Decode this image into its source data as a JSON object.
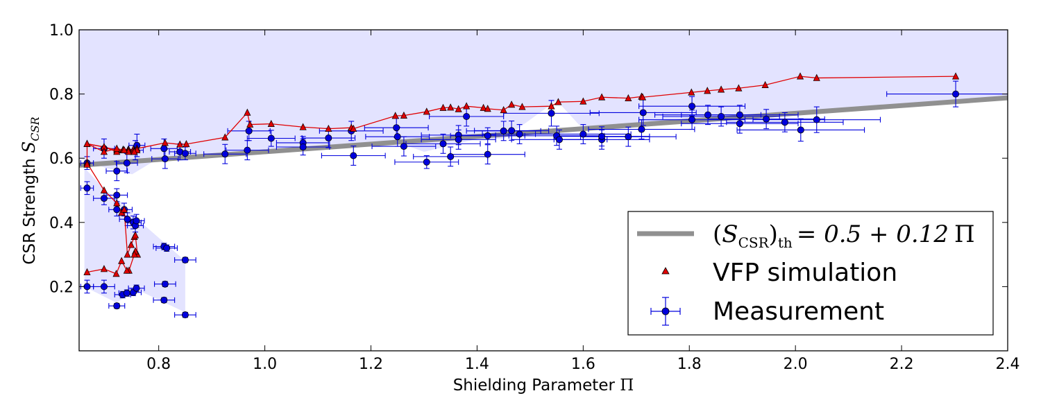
{
  "chart_data": {
    "type": "scatter",
    "xlabel": "Shielding Parameter Π",
    "xlabel_text": "Shielding Parameter",
    "xlabel_symbol": "Π",
    "ylabel": "CSR Strength S_CSR",
    "ylabel_text": "CSR Strength",
    "ylabel_symbol": "S",
    "ylabel_subscript": "CSR",
    "xlim": [
      0.65,
      2.4
    ],
    "ylim": [
      0.0,
      1.0
    ],
    "xticks": [
      0.8,
      1.0,
      1.2,
      1.4,
      1.6,
      1.8,
      2.0,
      2.2,
      2.4
    ],
    "xtick_labels": [
      "0.8",
      "1.0",
      "1.2",
      "1.4",
      "1.6",
      "1.8",
      "2.0",
      "2.2",
      "2.4"
    ],
    "yticks": [
      0.2,
      0.4,
      0.6,
      0.8,
      1.0
    ],
    "ytick_labels": [
      "0.2",
      "0.4",
      "0.6",
      "0.8",
      "1.0"
    ],
    "legend": {
      "position": "lower-right",
      "entries": [
        {
          "label": "(S_CSR)_th = 0.5 + 0.12 Π",
          "parts": {
            "open": "(",
            "S": "S",
            "sub": "CSR",
            "close": ")",
            "th": "th",
            "eq": "= 0.5 + 0.12",
            "pi": "Π"
          },
          "marker": "line",
          "color": "#909090"
        },
        {
          "label": "VFP simulation",
          "marker": "triangle",
          "color": "#e00000"
        },
        {
          "label": "Measurement",
          "marker": "circle-errorbar",
          "color": "#0000dd"
        }
      ]
    },
    "colors": {
      "region": "#e3e3ff",
      "threshold": "#909090",
      "simulation": "#e00000",
      "measurement": "#0000dd"
    },
    "threshold": {
      "name": "(S_CSR)_th",
      "intercept": 0.5,
      "slope": 0.12
    },
    "region_band": {
      "x": [
        0.65,
        0.7,
        0.75,
        0.8,
        0.84,
        0.85,
        0.97,
        1.07,
        1.16,
        1.25,
        1.3,
        1.4,
        1.45,
        1.55,
        1.6,
        1.7,
        1.8,
        2.0,
        2.3,
        2.4
      ],
      "upper": [
        1.0,
        1.0,
        1.0,
        1.0,
        1.0,
        1.0,
        1.0,
        1.0,
        1.0,
        1.0,
        1.0,
        1.0,
        1.0,
        1.0,
        1.0,
        1.0,
        1.0,
        1.0,
        1.0,
        1.0
      ],
      "lower_top": [
        0.6,
        0.57,
        0.55,
        0.6,
        0.6,
        0.6,
        0.62,
        0.63,
        0.64,
        0.65,
        0.62,
        0.66,
        0.66,
        0.78,
        0.69,
        0.7,
        0.72,
        0.74,
        0.78,
        0.79
      ]
    },
    "region_wedge": {
      "x": [
        0.66,
        0.7,
        0.74,
        0.76,
        0.85,
        0.85,
        0.76,
        0.72,
        0.66
      ],
      "y": [
        0.57,
        0.5,
        0.45,
        0.41,
        0.28,
        0.12,
        0.19,
        0.15,
        0.2
      ]
    },
    "series": [
      {
        "name": "VFP simulation",
        "marker": "triangle",
        "x": [
          0.665,
          0.665,
          0.697,
          0.721,
          0.733,
          0.743,
          0.752,
          0.759,
          0.759,
          0.754,
          0.743,
          0.735,
          0.721,
          0.697,
          0.665
        ],
        "y": [
          0.58,
          0.645,
          0.635,
          0.62,
          0.625,
          0.625,
          0.62,
          0.63,
          0.625,
          0.62,
          0.62,
          0.625,
          0.63,
          0.62,
          0.645
        ],
        "upper_x": [
          0.665,
          0.697,
          0.721,
          0.733,
          0.743,
          0.752,
          0.759,
          0.812,
          0.84,
          0.852,
          0.925,
          0.967,
          0.972,
          1.012,
          1.072,
          1.12,
          1.163,
          1.167,
          1.246,
          1.262,
          1.305,
          1.336,
          1.35,
          1.365,
          1.38,
          1.412,
          1.42,
          1.45,
          1.465,
          1.485,
          1.54,
          1.553,
          1.6,
          1.635,
          1.685,
          1.71,
          1.712,
          1.804,
          1.834,
          1.86,
          1.893,
          1.943,
          2.009,
          2.04,
          2.302
        ],
        "upper_y": [
          0.645,
          0.635,
          0.625,
          0.627,
          0.628,
          0.627,
          0.63,
          0.648,
          0.643,
          0.644,
          0.665,
          0.742,
          0.705,
          0.707,
          0.697,
          0.692,
          0.695,
          0.692,
          0.732,
          0.733,
          0.745,
          0.757,
          0.758,
          0.753,
          0.762,
          0.757,
          0.754,
          0.75,
          0.767,
          0.76,
          0.762,
          0.775,
          0.777,
          0.79,
          0.787,
          0.792,
          0.79,
          0.805,
          0.81,
          0.814,
          0.818,
          0.828,
          0.855,
          0.85,
          0.855
        ],
        "lower_x": [
          0.665,
          0.697,
          0.721,
          0.73,
          0.735,
          0.741,
          0.748,
          0.754,
          0.756,
          0.76,
          0.756,
          0.754,
          0.744,
          0.74,
          0.73,
          0.72,
          0.697,
          0.665
        ],
        "lower_y": [
          0.585,
          0.5,
          0.46,
          0.43,
          0.44,
          0.3,
          0.33,
          0.355,
          0.36,
          0.3,
          0.31,
          0.3,
          0.25,
          0.25,
          0.28,
          0.24,
          0.255,
          0.245
        ]
      },
      {
        "name": "Measurement",
        "marker": "circle",
        "x": [
          0.665,
          0.697,
          0.721,
          0.74,
          0.756,
          0.759,
          0.81,
          0.812,
          0.84,
          0.85,
          0.925,
          0.967,
          0.97,
          1.012,
          1.072,
          1.072,
          1.12,
          1.163,
          1.167,
          1.248,
          1.25,
          1.262,
          1.305,
          1.336,
          1.35,
          1.365,
          1.365,
          1.38,
          1.42,
          1.42,
          1.45,
          1.465,
          1.48,
          1.54,
          1.55,
          1.555,
          1.6,
          1.635,
          1.635,
          1.685,
          1.71,
          1.713,
          1.805,
          1.805,
          1.835,
          1.86,
          1.895,
          1.895,
          1.945,
          1.98,
          2.01,
          2.04,
          2.302,
          0.665,
          0.697,
          0.721,
          0.721,
          0.735,
          0.741,
          0.752,
          0.756,
          0.758,
          0.81,
          0.815,
          0.665,
          0.697,
          0.721,
          0.732,
          0.74,
          0.752,
          0.758,
          0.81,
          0.812,
          0.85,
          0.85
        ],
        "y": [
          0.585,
          0.63,
          0.56,
          0.585,
          0.625,
          0.64,
          0.63,
          0.598,
          0.62,
          0.615,
          0.613,
          0.625,
          0.685,
          0.662,
          0.648,
          0.635,
          0.663,
          0.685,
          0.608,
          0.695,
          0.667,
          0.637,
          0.588,
          0.645,
          0.605,
          0.672,
          0.658,
          0.73,
          0.612,
          0.67,
          0.685,
          0.686,
          0.675,
          0.74,
          0.67,
          0.658,
          0.675,
          0.658,
          0.668,
          0.667,
          0.69,
          0.742,
          0.762,
          0.72,
          0.735,
          0.73,
          0.735,
          0.708,
          0.722,
          0.712,
          0.688,
          0.72,
          0.8,
          0.507,
          0.475,
          0.485,
          0.44,
          0.44,
          0.41,
          0.4,
          0.39,
          0.405,
          0.325,
          0.32,
          0.2,
          0.2,
          0.14,
          0.175,
          0.18,
          0.182,
          0.195,
          0.158,
          0.208,
          0.112,
          0.283
        ],
        "xerr": [
          0.012,
          0.02,
          0.02,
          0.02,
          0.015,
          0.015,
          0.025,
          0.025,
          0.02,
          0.02,
          0.04,
          0.04,
          0.04,
          0.045,
          0.05,
          0.05,
          0.05,
          0.06,
          0.06,
          0.06,
          0.06,
          0.06,
          0.06,
          0.07,
          0.07,
          0.07,
          0.07,
          0.07,
          0.07,
          0.07,
          0.07,
          0.07,
          0.07,
          0.09,
          0.09,
          0.09,
          0.09,
          0.09,
          0.09,
          0.09,
          0.1,
          0.1,
          0.1,
          0.1,
          0.1,
          0.11,
          0.11,
          0.11,
          0.11,
          0.11,
          0.12,
          0.12,
          0.13,
          0.012,
          0.02,
          0.02,
          0.015,
          0.015,
          0.015,
          0.015,
          0.015,
          0.015,
          0.02,
          0.02,
          0.012,
          0.02,
          0.015,
          0.015,
          0.015,
          0.015,
          0.015,
          0.02,
          0.02,
          0.02,
          0.02
        ],
        "yerr": [
          0.02,
          0.03,
          0.03,
          0.03,
          0.03,
          0.035,
          0.03,
          0.03,
          0.025,
          0.02,
          0.03,
          0.03,
          0.03,
          0.025,
          0.02,
          0.025,
          0.03,
          0.03,
          0.03,
          0.03,
          0.03,
          0.03,
          0.02,
          0.03,
          0.03,
          0.03,
          0.03,
          0.03,
          0.03,
          0.025,
          0.03,
          0.03,
          0.03,
          0.04,
          0.03,
          0.03,
          0.03,
          0.03,
          0.03,
          0.03,
          0.03,
          0.04,
          0.03,
          0.03,
          0.03,
          0.03,
          0.03,
          0.03,
          0.03,
          0.03,
          0.035,
          0.04,
          0.04,
          0.02,
          0.02,
          0.02,
          0.02,
          0.02,
          0.02,
          0.02,
          0.02,
          0.02,
          0.01,
          0.01,
          0.02,
          0.02,
          0.008,
          0.01,
          0.01,
          0.01,
          0.01,
          0.008,
          0.008,
          0.008,
          0.008
        ]
      }
    ]
  }
}
